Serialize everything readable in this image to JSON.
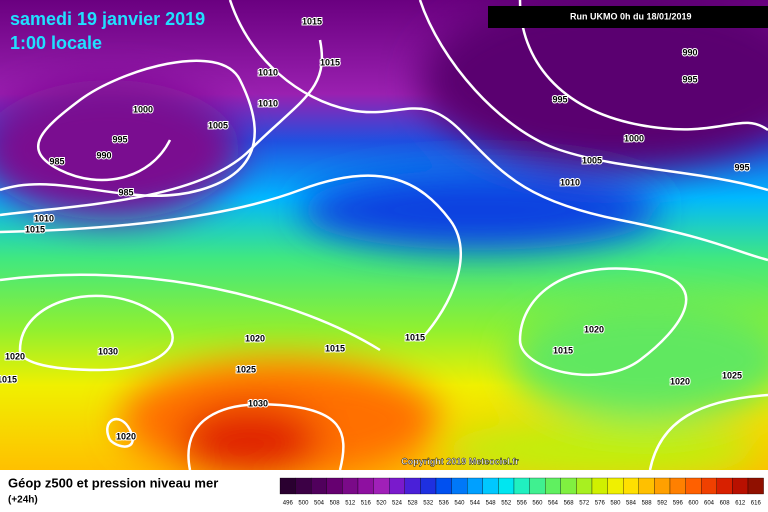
{
  "header": {
    "title": "samedi 19 janvier 2019",
    "subtitle": "1:00 locale",
    "run": "Run UKMO 0h du 18/01/2019"
  },
  "map": {
    "isobar_labels": [
      1015,
      1015,
      1010,
      1010,
      1005,
      1000,
      995,
      990,
      985,
      985,
      1010,
      1015,
      990,
      995,
      995,
      1000,
      1005,
      1010,
      995,
      1020,
      1015,
      1020,
      1025,
      1015,
      1015,
      1020,
      1025,
      1030,
      1030,
      1020,
      1015,
      1020
    ],
    "copyright": "Copyright 2019 Meteociel.fr"
  },
  "footer": {
    "title": "Géop z500 et pression niveau mer",
    "lead": "(+24h)",
    "scale": [
      496,
      500,
      504,
      508,
      512,
      516,
      520,
      524,
      528,
      532,
      536,
      540,
      544,
      548,
      552,
      556,
      560,
      564,
      568,
      572,
      576,
      580,
      584,
      588,
      592,
      596,
      600,
      604,
      608,
      612,
      616
    ],
    "scale_colors": [
      "#2a0030",
      "#3c0045",
      "#50005c",
      "#660070",
      "#7a0a88",
      "#8e10a0",
      "#a020b8",
      "#7a1acc",
      "#4a20d8",
      "#1e30e0",
      "#0050f0",
      "#0078f8",
      "#00a0ff",
      "#00c8ff",
      "#00e6f0",
      "#20f0c0",
      "#40f090",
      "#60f060",
      "#80f040",
      "#a8f020",
      "#d0f000",
      "#f0f000",
      "#ffe000",
      "#ffc000",
      "#ffa000",
      "#ff8000",
      "#ff6000",
      "#f04000",
      "#d82000",
      "#b81000",
      "#901000"
    ]
  }
}
